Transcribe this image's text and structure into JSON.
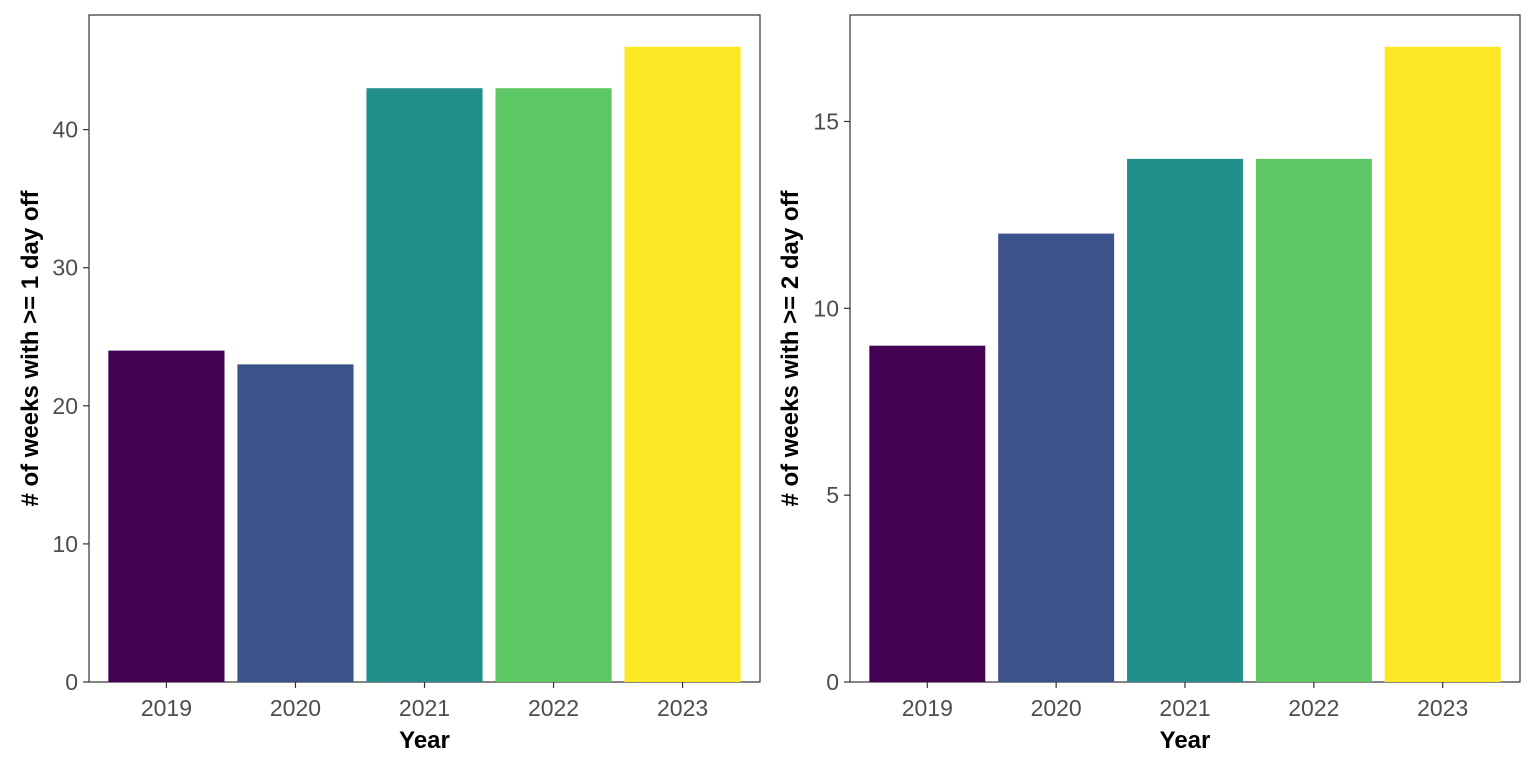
{
  "chart_data": [
    {
      "type": "bar",
      "categories": [
        "2019",
        "2020",
        "2021",
        "2022",
        "2023"
      ],
      "values": [
        24,
        23,
        43,
        43,
        46
      ],
      "colors": [
        "#440154",
        "#3B528B",
        "#21908C",
        "#5DC863",
        "#FDE725"
      ],
      "xlabel": "Year",
      "ylabel": "# of weeks with >= 1 day off",
      "ylim": [
        0,
        48.3
      ],
      "yticks": [
        0,
        10,
        20,
        30,
        40
      ],
      "grid": false,
      "legend": "none"
    },
    {
      "type": "bar",
      "categories": [
        "2019",
        "2020",
        "2021",
        "2022",
        "2023"
      ],
      "values": [
        9,
        12,
        14,
        14,
        17
      ],
      "colors": [
        "#440154",
        "#3B528B",
        "#21908C",
        "#5DC863",
        "#FDE725"
      ],
      "xlabel": "Year",
      "ylabel": "# of weeks with >= 2 day off",
      "ylim": [
        0,
        17.85
      ],
      "yticks": [
        0,
        5,
        10,
        15
      ],
      "grid": false,
      "legend": "none"
    }
  ]
}
